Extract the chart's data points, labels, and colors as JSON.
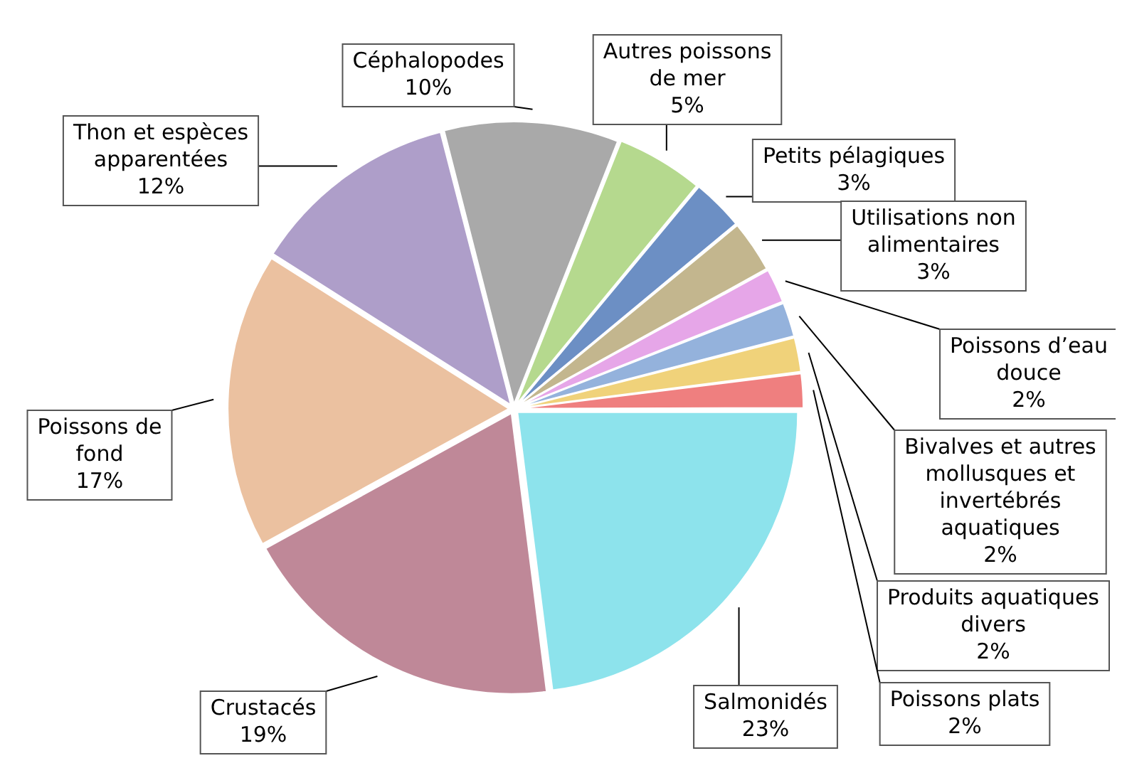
{
  "chart_data": {
    "type": "pie",
    "categories": [
      "Salmonidés",
      "Crustacés",
      "Poissons de fond",
      "Thon et espèces apparentées",
      "Céphalopodes",
      "Autres poissons de mer",
      "Petits pélagiques",
      "Utilisations non alimentaires",
      "Poissons d’eau douce",
      "Bivalves et autres mollusques et invertébrés aquatiques",
      "Produits aquatiques divers",
      "Poissons plats"
    ],
    "values": [
      23,
      19,
      17,
      12,
      10,
      5,
      3,
      3,
      2,
      2,
      2,
      2
    ],
    "value_labels": [
      "23%",
      "19%",
      "17%",
      "12%",
      "10%",
      "5%",
      "3%",
      "3%",
      "2%",
      "2%",
      "2%",
      "2%"
    ],
    "colors": [
      "#8de3ec",
      "#bf8898",
      "#ebc1a0",
      "#ae9ec9",
      "#a9a9a9",
      "#b5d98e",
      "#6c8fc4",
      "#c3b68e",
      "#e6a6e8",
      "#94b2dc",
      "#f0d27a",
      "#ef7f7f"
    ],
    "legend": false
  }
}
